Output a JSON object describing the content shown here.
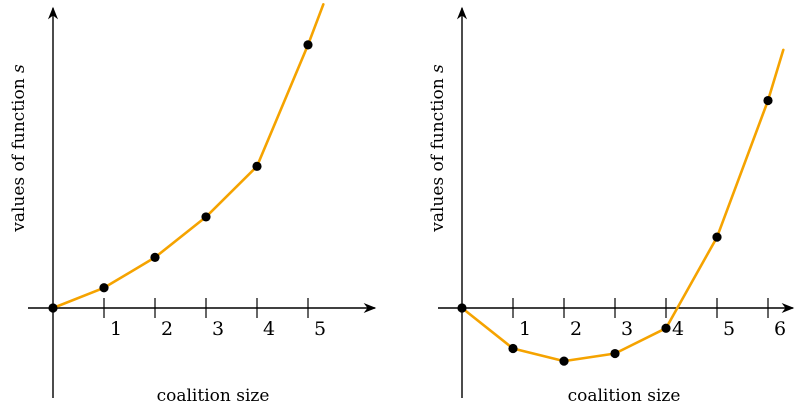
{
  "colors": {
    "line": "#F5A300",
    "point": "#000000",
    "axis": "#000000"
  },
  "chart_data": [
    {
      "type": "line",
      "xlabel": "coalition size",
      "ylabel_prefix": "values of function",
      "ylabel_var": "s",
      "x_ticks": [
        "1",
        "2",
        "3",
        "4",
        "5"
      ],
      "x": [
        0,
        1,
        2,
        3,
        4,
        5
      ],
      "values": [
        0,
        0.4,
        1.0,
        1.8,
        2.8,
        5.2
      ],
      "line_extends_to": {
        "x": 5.3,
        "y": 6.0
      },
      "xlim": [
        -0.45,
        6.4
      ],
      "ylim": [
        -1.8,
        6.0
      ],
      "grid": false,
      "legend": "none"
    },
    {
      "type": "line",
      "xlabel": "coalition size",
      "ylabel_prefix": "values of function",
      "ylabel_var": "s",
      "x_ticks": [
        "1",
        "2",
        "3",
        "4",
        "5",
        "6"
      ],
      "x": [
        0,
        1,
        2,
        3,
        4,
        5,
        6
      ],
      "values": [
        0,
        -0.8,
        -1.05,
        -0.9,
        -0.4,
        1.4,
        4.1
      ],
      "line_extends_to": {
        "x": 6.3,
        "y": 5.1
      },
      "xlim": [
        -0.45,
        6.65
      ],
      "ylim": [
        -1.8,
        6.0
      ],
      "grid": false,
      "legend": "none"
    }
  ]
}
